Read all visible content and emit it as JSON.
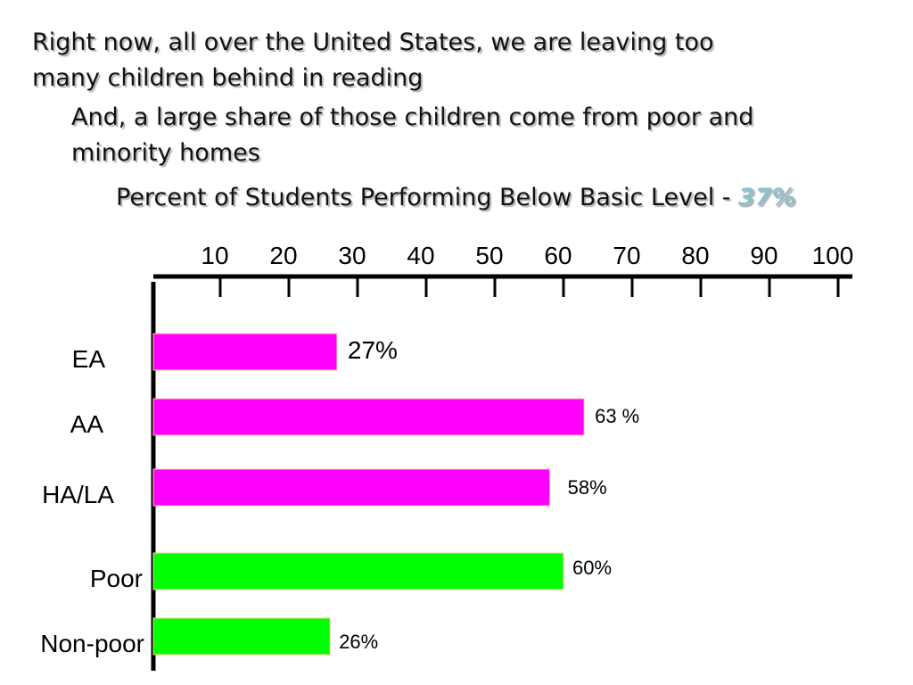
{
  "intro": {
    "line1": "Right now, all over the United States, we are leaving too",
    "line2": "many children behind in reading"
  },
  "followup": {
    "line1": "And, a large share of those children come from poor and",
    "line2": "minority homes"
  },
  "chart_data": {
    "type": "bar",
    "orientation": "horizontal",
    "title": "Percent of Students Performing Below Basic Level - ",
    "title_highlight": "37%",
    "categories": [
      "EA",
      "AA",
      "HA/LA",
      "Poor",
      "Non-poor"
    ],
    "values": [
      27,
      63,
      58,
      60,
      26
    ],
    "value_labels": [
      "27%",
      "63 %",
      "58%",
      "60%",
      "26%"
    ],
    "bar_colors": [
      "#ff00ff",
      "#ff00ff",
      "#ff00ff",
      "#00ff00",
      "#00ff00"
    ],
    "xlim": [
      0,
      100
    ],
    "x_ticks": [
      10,
      20,
      30,
      40,
      50,
      60,
      70,
      80,
      90,
      100
    ],
    "axis_position": "top",
    "grid": false,
    "xlabel": "",
    "ylabel": "",
    "colors": {
      "highlight": "#8ec0cc",
      "axis": "#000000"
    }
  }
}
